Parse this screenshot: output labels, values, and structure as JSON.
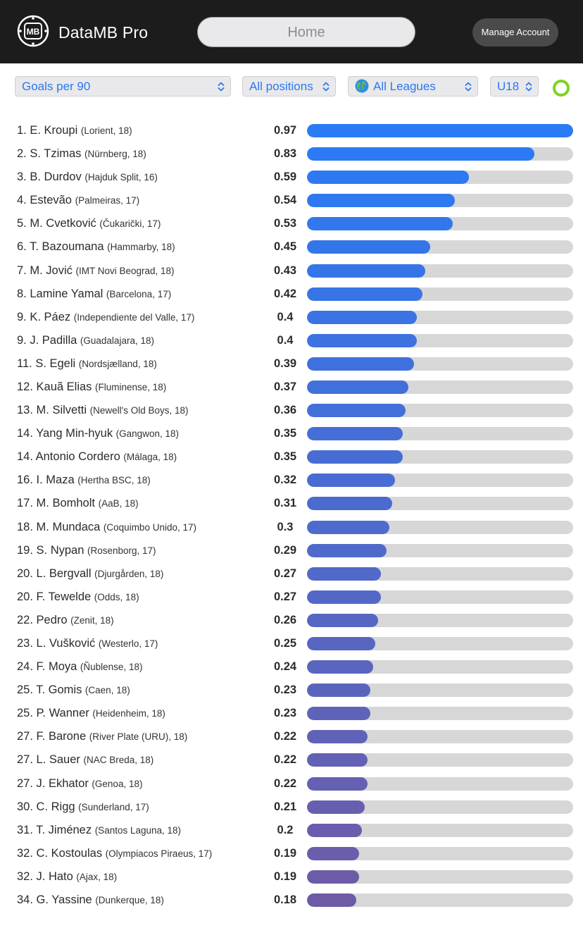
{
  "header": {
    "app_title": "DataMB Pro",
    "logo_text": "MB",
    "home_label": "Home",
    "manage_account_label": "Manage Account"
  },
  "filters": {
    "metric": "Goals per 90",
    "position": "All positions",
    "league": "All Leagues",
    "age": "U18"
  },
  "colors": {
    "bar_start": "#2a7bf6",
    "bar_end": "#6e5ba6",
    "track": "#d7d7d7",
    "status_ring": "#7ed321"
  },
  "chart_data": {
    "type": "bar",
    "orientation": "horizontal",
    "title": "Goals per 90",
    "xlim": [
      0,
      0.97
    ],
    "rows": [
      {
        "rank": "1.",
        "name": "E. Kroupi",
        "club": "(Lorient, 18)",
        "value": 0.97,
        "label": "0.97"
      },
      {
        "rank": "2.",
        "name": "S. Tzimas",
        "club": "(Nürnberg, 18)",
        "value": 0.83,
        "label": "0.83"
      },
      {
        "rank": "3.",
        "name": "B. Durdov",
        "club": "(Hajduk Split, 16)",
        "value": 0.59,
        "label": "0.59"
      },
      {
        "rank": "4.",
        "name": "Estevão",
        "club": "(Palmeiras, 17)",
        "value": 0.54,
        "label": "0.54"
      },
      {
        "rank": "5.",
        "name": "M. Cvetković",
        "club": "(Čukarički, 17)",
        "value": 0.53,
        "label": "0.53"
      },
      {
        "rank": "6.",
        "name": "T. Bazoumana",
        "club": "(Hammarby, 18)",
        "value": 0.45,
        "label": "0.45"
      },
      {
        "rank": "7.",
        "name": "M. Jović",
        "club": "(IMT Novi Beograd, 18)",
        "value": 0.43,
        "label": "0.43"
      },
      {
        "rank": "8.",
        "name": "Lamine Yamal",
        "club": "(Barcelona, 17)",
        "value": 0.42,
        "label": "0.42"
      },
      {
        "rank": "9.",
        "name": "K. Páez",
        "club": "(Independiente del Valle, 17)",
        "value": 0.4,
        "label": "0.4"
      },
      {
        "rank": "9.",
        "name": "J. Padilla",
        "club": "(Guadalajara, 18)",
        "value": 0.4,
        "label": "0.4"
      },
      {
        "rank": "11.",
        "name": "S. Egeli",
        "club": "(Nordsjælland, 18)",
        "value": 0.39,
        "label": "0.39"
      },
      {
        "rank": "12.",
        "name": "Kauã Elias",
        "club": "(Fluminense, 18)",
        "value": 0.37,
        "label": "0.37"
      },
      {
        "rank": "13.",
        "name": "M. Silvetti",
        "club": "(Newell's Old Boys, 18)",
        "value": 0.36,
        "label": "0.36"
      },
      {
        "rank": "14.",
        "name": "Yang Min-hyuk",
        "club": "(Gangwon, 18)",
        "value": 0.35,
        "label": "0.35"
      },
      {
        "rank": "14.",
        "name": "Antonio Cordero",
        "club": "(Málaga, 18)",
        "value": 0.35,
        "label": "0.35"
      },
      {
        "rank": "16.",
        "name": "I. Maza",
        "club": "(Hertha BSC, 18)",
        "value": 0.32,
        "label": "0.32"
      },
      {
        "rank": "17.",
        "name": "M. Bomholt",
        "club": "(AaB, 18)",
        "value": 0.31,
        "label": "0.31"
      },
      {
        "rank": "18.",
        "name": "M. Mundaca",
        "club": "(Coquimbo Unido, 17)",
        "value": 0.3,
        "label": "0.3"
      },
      {
        "rank": "19.",
        "name": "S. Nypan",
        "club": "(Rosenborg, 17)",
        "value": 0.29,
        "label": "0.29"
      },
      {
        "rank": "20.",
        "name": "L. Bergvall",
        "club": "(Djurgården, 18)",
        "value": 0.27,
        "label": "0.27"
      },
      {
        "rank": "20.",
        "name": "F. Tewelde",
        "club": "(Odds, 18)",
        "value": 0.27,
        "label": "0.27"
      },
      {
        "rank": "22.",
        "name": "Pedro",
        "club": "(Zenit, 18)",
        "value": 0.26,
        "label": "0.26"
      },
      {
        "rank": "23.",
        "name": "L. Vušković",
        "club": "(Westerlo, 17)",
        "value": 0.25,
        "label": "0.25"
      },
      {
        "rank": "24.",
        "name": "F. Moya",
        "club": "(Ñublense, 18)",
        "value": 0.24,
        "label": "0.24"
      },
      {
        "rank": "25.",
        "name": "T. Gomis",
        "club": "(Caen, 18)",
        "value": 0.23,
        "label": "0.23"
      },
      {
        "rank": "25.",
        "name": "P. Wanner",
        "club": "(Heidenheim, 18)",
        "value": 0.23,
        "label": "0.23"
      },
      {
        "rank": "27.",
        "name": "F. Barone",
        "club": "(River Plate (URU), 18)",
        "value": 0.22,
        "label": "0.22"
      },
      {
        "rank": "27.",
        "name": "L. Sauer",
        "club": "(NAC Breda, 18)",
        "value": 0.22,
        "label": "0.22"
      },
      {
        "rank": "27.",
        "name": "J. Ekhator",
        "club": "(Genoa, 18)",
        "value": 0.22,
        "label": "0.22"
      },
      {
        "rank": "30.",
        "name": "C. Rigg",
        "club": "(Sunderland, 17)",
        "value": 0.21,
        "label": "0.21"
      },
      {
        "rank": "31.",
        "name": "T. Jiménez",
        "club": "(Santos Laguna, 18)",
        "value": 0.2,
        "label": "0.2"
      },
      {
        "rank": "32.",
        "name": "C. Kostoulas",
        "club": "(Olympiacos Piraeus, 17)",
        "value": 0.19,
        "label": "0.19"
      },
      {
        "rank": "32.",
        "name": "J. Hato",
        "club": "(Ajax, 18)",
        "value": 0.19,
        "label": "0.19"
      },
      {
        "rank": "34.",
        "name": "G. Yassine",
        "club": "(Dunkerque, 18)",
        "value": 0.18,
        "label": "0.18"
      }
    ]
  }
}
